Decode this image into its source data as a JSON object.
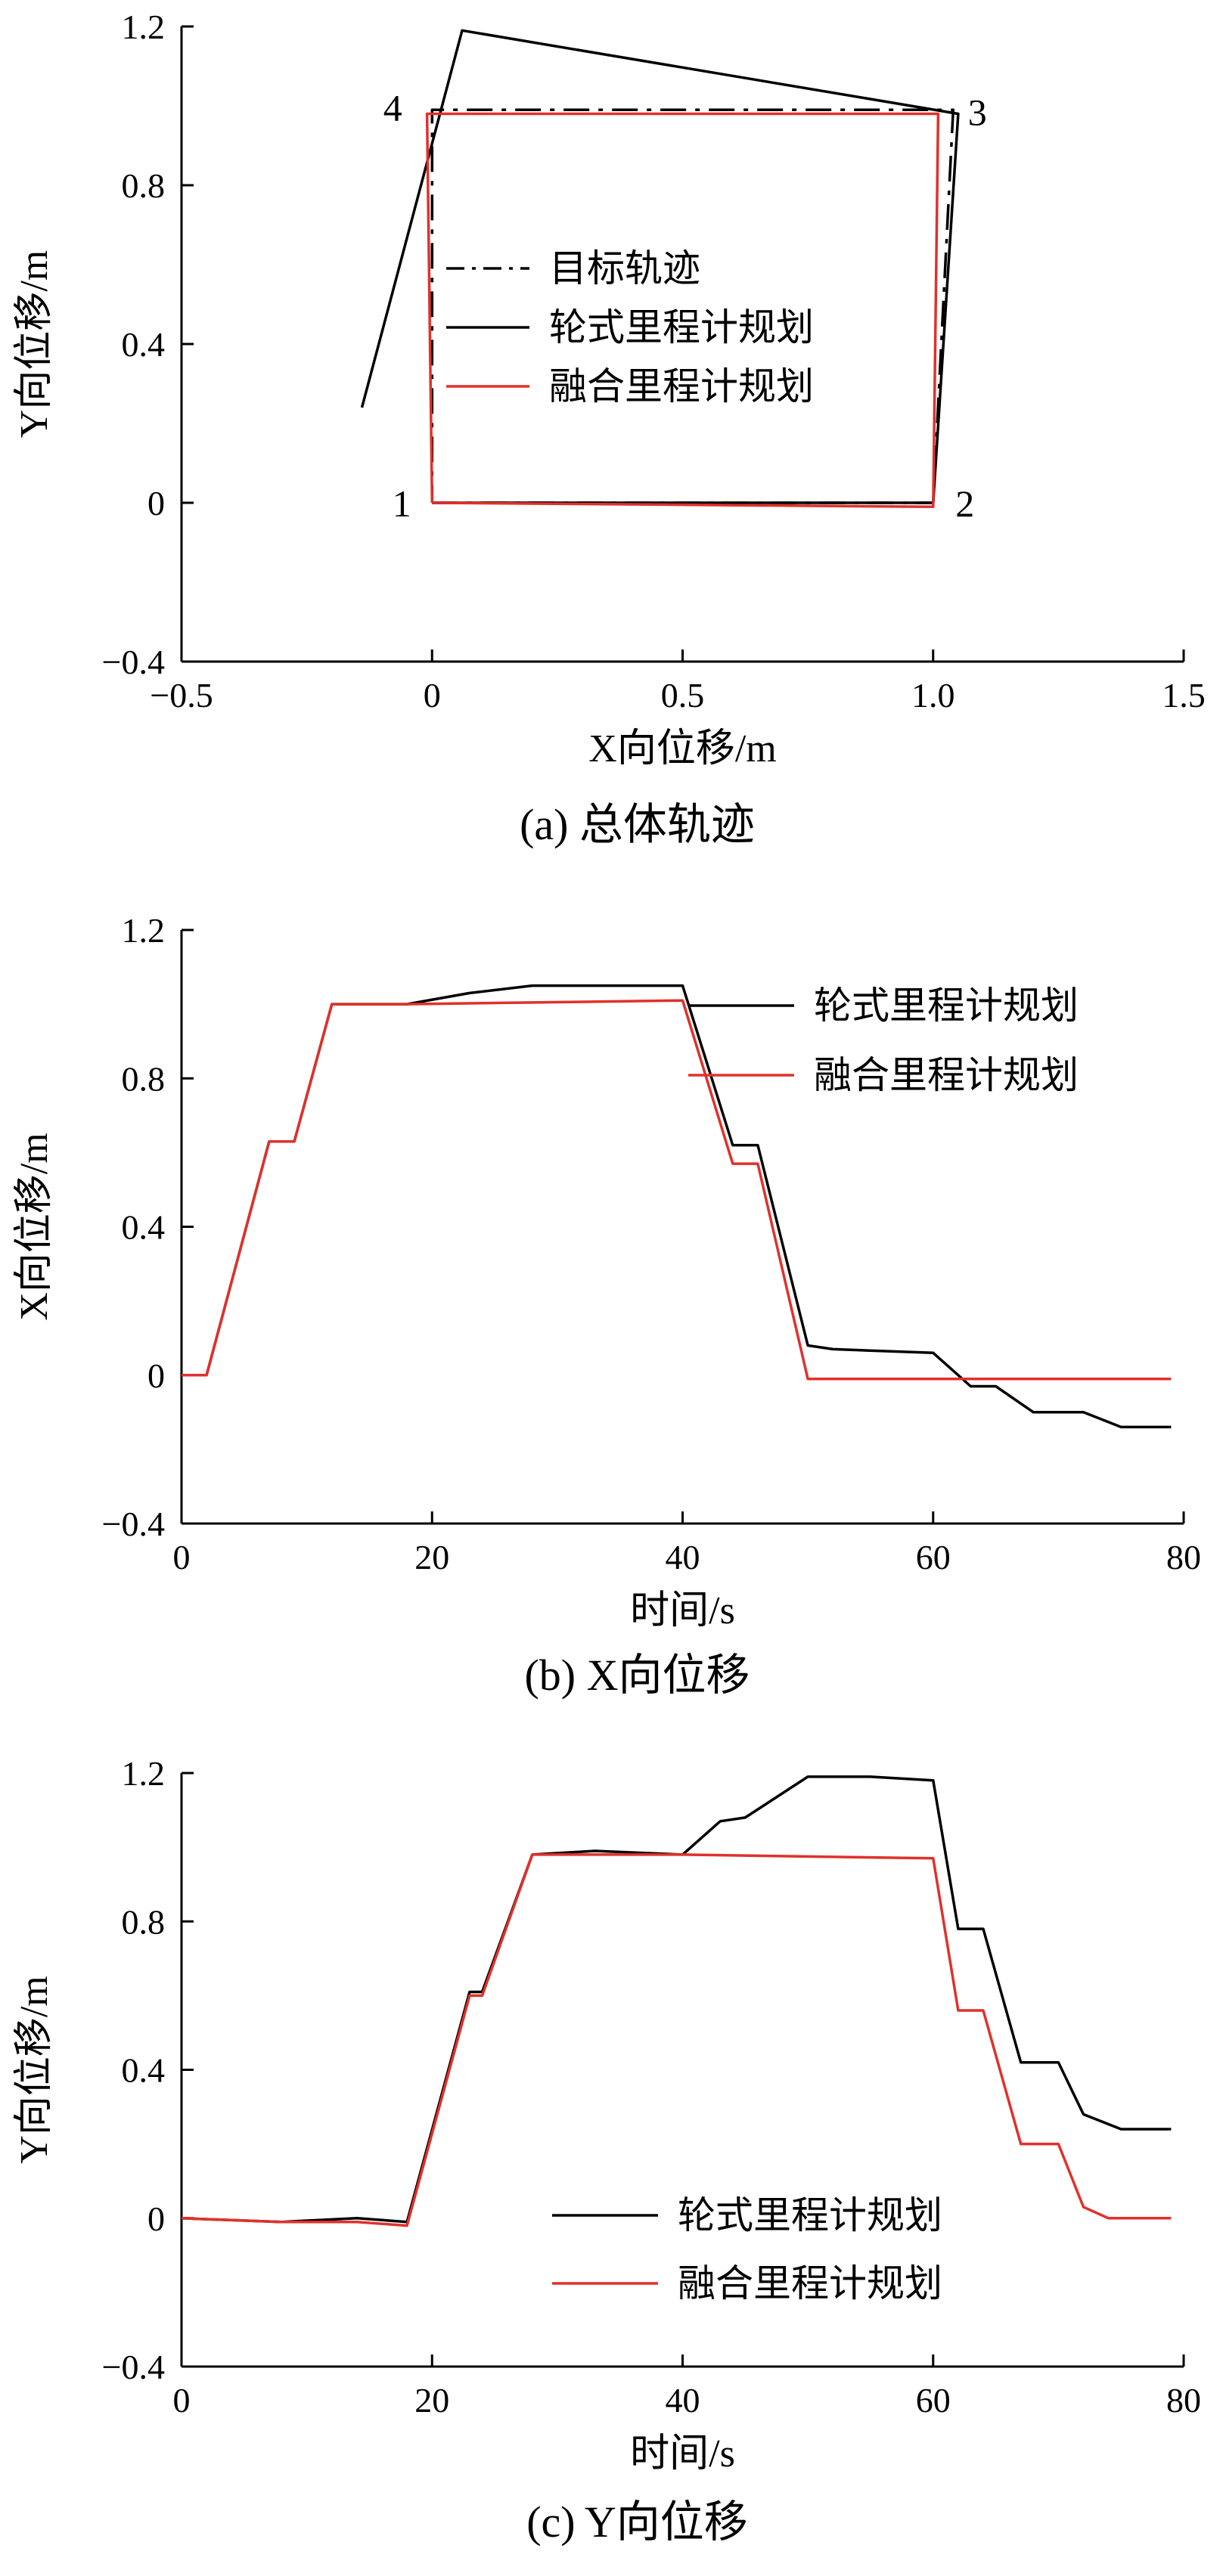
{
  "chart_data": [
    {
      "type": "line",
      "caption": "(a)  总体轨迹",
      "xlabel": "X向位移/m",
      "ylabel": "Y向位移/m",
      "xlim": [
        -0.5,
        1.5
      ],
      "ylim": [
        -0.4,
        1.2
      ],
      "xticks": [
        -0.5,
        0,
        0.5,
        1.0,
        1.5
      ],
      "xtick_labels": [
        "−0.5",
        "0",
        "0.5",
        "1.0",
        "1.5"
      ],
      "yticks": [
        -0.4,
        0,
        0.4,
        0.8,
        1.2
      ],
      "ytick_labels": [
        "−0.4",
        "0",
        "0.4",
        "0.8",
        "1.2"
      ],
      "legend_position": "center",
      "corner_labels": [
        {
          "text": "1",
          "x": 0.0,
          "y": 0.0
        },
        {
          "text": "2",
          "x": 1.0,
          "y": 0.0
        },
        {
          "text": "3",
          "x": 1.04,
          "y": 0.99
        },
        {
          "text": "4",
          "x": 0.0,
          "y": 0.99
        }
      ],
      "series": [
        {
          "name": "目标轨迹",
          "color": "#000000",
          "dash": "dashdot",
          "points": [
            [
              0,
              0
            ],
            [
              1.0,
              0
            ],
            [
              1.04,
              0.99
            ],
            [
              0,
              0.99
            ],
            [
              0,
              0
            ]
          ]
        },
        {
          "name": "轮式里程计规划",
          "color": "#000000",
          "dash": "solid",
          "points": [
            [
              0,
              0
            ],
            [
              1.0,
              0
            ],
            [
              1.05,
              0.98
            ],
            [
              0.06,
              1.19
            ],
            [
              -0.14,
              0.24
            ]
          ]
        },
        {
          "name": "融合里程计规划",
          "color": "#e0312b",
          "dash": "solid",
          "points": [
            [
              0,
              0
            ],
            [
              1.0,
              -0.01
            ],
            [
              1.01,
              0.98
            ],
            [
              -0.01,
              0.98
            ],
            [
              0,
              0
            ]
          ]
        }
      ]
    },
    {
      "type": "line",
      "caption": "(b)  X向位移",
      "xlabel": "时间/s",
      "ylabel": "X向位移/m",
      "xlim": [
        0,
        80
      ],
      "ylim": [
        -0.4,
        1.2
      ],
      "xticks": [
        0,
        20,
        40,
        60,
        80
      ],
      "xtick_labels": [
        "0",
        "20",
        "40",
        "60",
        "80"
      ],
      "yticks": [
        -0.4,
        0,
        0.4,
        0.8,
        1.2
      ],
      "ytick_labels": [
        "−0.4",
        "0",
        "0.4",
        "0.8",
        "1.2"
      ],
      "legend_position": "top-right",
      "series": [
        {
          "name": "轮式里程计规划",
          "color": "#000000",
          "points": [
            [
              0,
              0
            ],
            [
              2,
              0
            ],
            [
              7,
              0.63
            ],
            [
              9,
              0.63
            ],
            [
              12,
              1.0
            ],
            [
              18,
              1.0
            ],
            [
              23,
              1.03
            ],
            [
              28,
              1.05
            ],
            [
              35,
              1.05
            ],
            [
              40,
              1.05
            ],
            [
              44,
              0.62
            ],
            [
              46,
              0.62
            ],
            [
              50,
              0.08
            ],
            [
              52,
              0.07
            ],
            [
              60,
              0.06
            ],
            [
              63,
              -0.03
            ],
            [
              65,
              -0.03
            ],
            [
              68,
              -0.1
            ],
            [
              72,
              -0.1
            ],
            [
              75,
              -0.14
            ],
            [
              79,
              -0.14
            ]
          ]
        },
        {
          "name": "融合里程计规划",
          "color": "#e0312b",
          "points": [
            [
              0,
              0
            ],
            [
              2,
              0
            ],
            [
              7,
              0.63
            ],
            [
              9,
              0.63
            ],
            [
              12,
              1.0
            ],
            [
              18,
              1.0
            ],
            [
              40,
              1.01
            ],
            [
              44,
              0.57
            ],
            [
              46,
              0.57
            ],
            [
              50,
              -0.01
            ],
            [
              60,
              -0.01
            ],
            [
              70,
              -0.01
            ],
            [
              79,
              -0.01
            ]
          ]
        }
      ]
    },
    {
      "type": "line",
      "caption": "(c)  Y向位移",
      "xlabel": "时间/s",
      "ylabel": "Y向位移/m",
      "xlim": [
        0,
        80
      ],
      "ylim": [
        -0.4,
        1.2
      ],
      "xticks": [
        0,
        20,
        40,
        60,
        80
      ],
      "xtick_labels": [
        "0",
        "20",
        "40",
        "60",
        "80"
      ],
      "yticks": [
        -0.4,
        0,
        0.4,
        0.8,
        1.2
      ],
      "ytick_labels": [
        "−0.4",
        "0",
        "0.4",
        "0.8",
        "1.2"
      ],
      "legend_position": "bottom-right",
      "series": [
        {
          "name": "轮式里程计规划",
          "color": "#000000",
          "points": [
            [
              0,
              0
            ],
            [
              8,
              -0.01
            ],
            [
              14,
              0
            ],
            [
              18,
              -0.01
            ],
            [
              23,
              0.61
            ],
            [
              24,
              0.61
            ],
            [
              28,
              0.98
            ],
            [
              33,
              0.99
            ],
            [
              40,
              0.98
            ],
            [
              43,
              1.07
            ],
            [
              45,
              1.08
            ],
            [
              50,
              1.19
            ],
            [
              55,
              1.19
            ],
            [
              60,
              1.18
            ],
            [
              62,
              0.78
            ],
            [
              64,
              0.78
            ],
            [
              67,
              0.42
            ],
            [
              70,
              0.42
            ],
            [
              72,
              0.28
            ],
            [
              75,
              0.24
            ],
            [
              79,
              0.24
            ]
          ]
        },
        {
          "name": "融合里程计规划",
          "color": "#e0312b",
          "points": [
            [
              0,
              0
            ],
            [
              8,
              -0.01
            ],
            [
              14,
              -0.01
            ],
            [
              18,
              -0.02
            ],
            [
              23,
              0.6
            ],
            [
              24,
              0.6
            ],
            [
              28,
              0.98
            ],
            [
              35,
              0.98
            ],
            [
              40,
              0.98
            ],
            [
              60,
              0.97
            ],
            [
              62,
              0.56
            ],
            [
              64,
              0.56
            ],
            [
              67,
              0.2
            ],
            [
              70,
              0.2
            ],
            [
              72,
              0.03
            ],
            [
              74,
              0.0
            ],
            [
              79,
              0.0
            ]
          ]
        }
      ]
    }
  ]
}
